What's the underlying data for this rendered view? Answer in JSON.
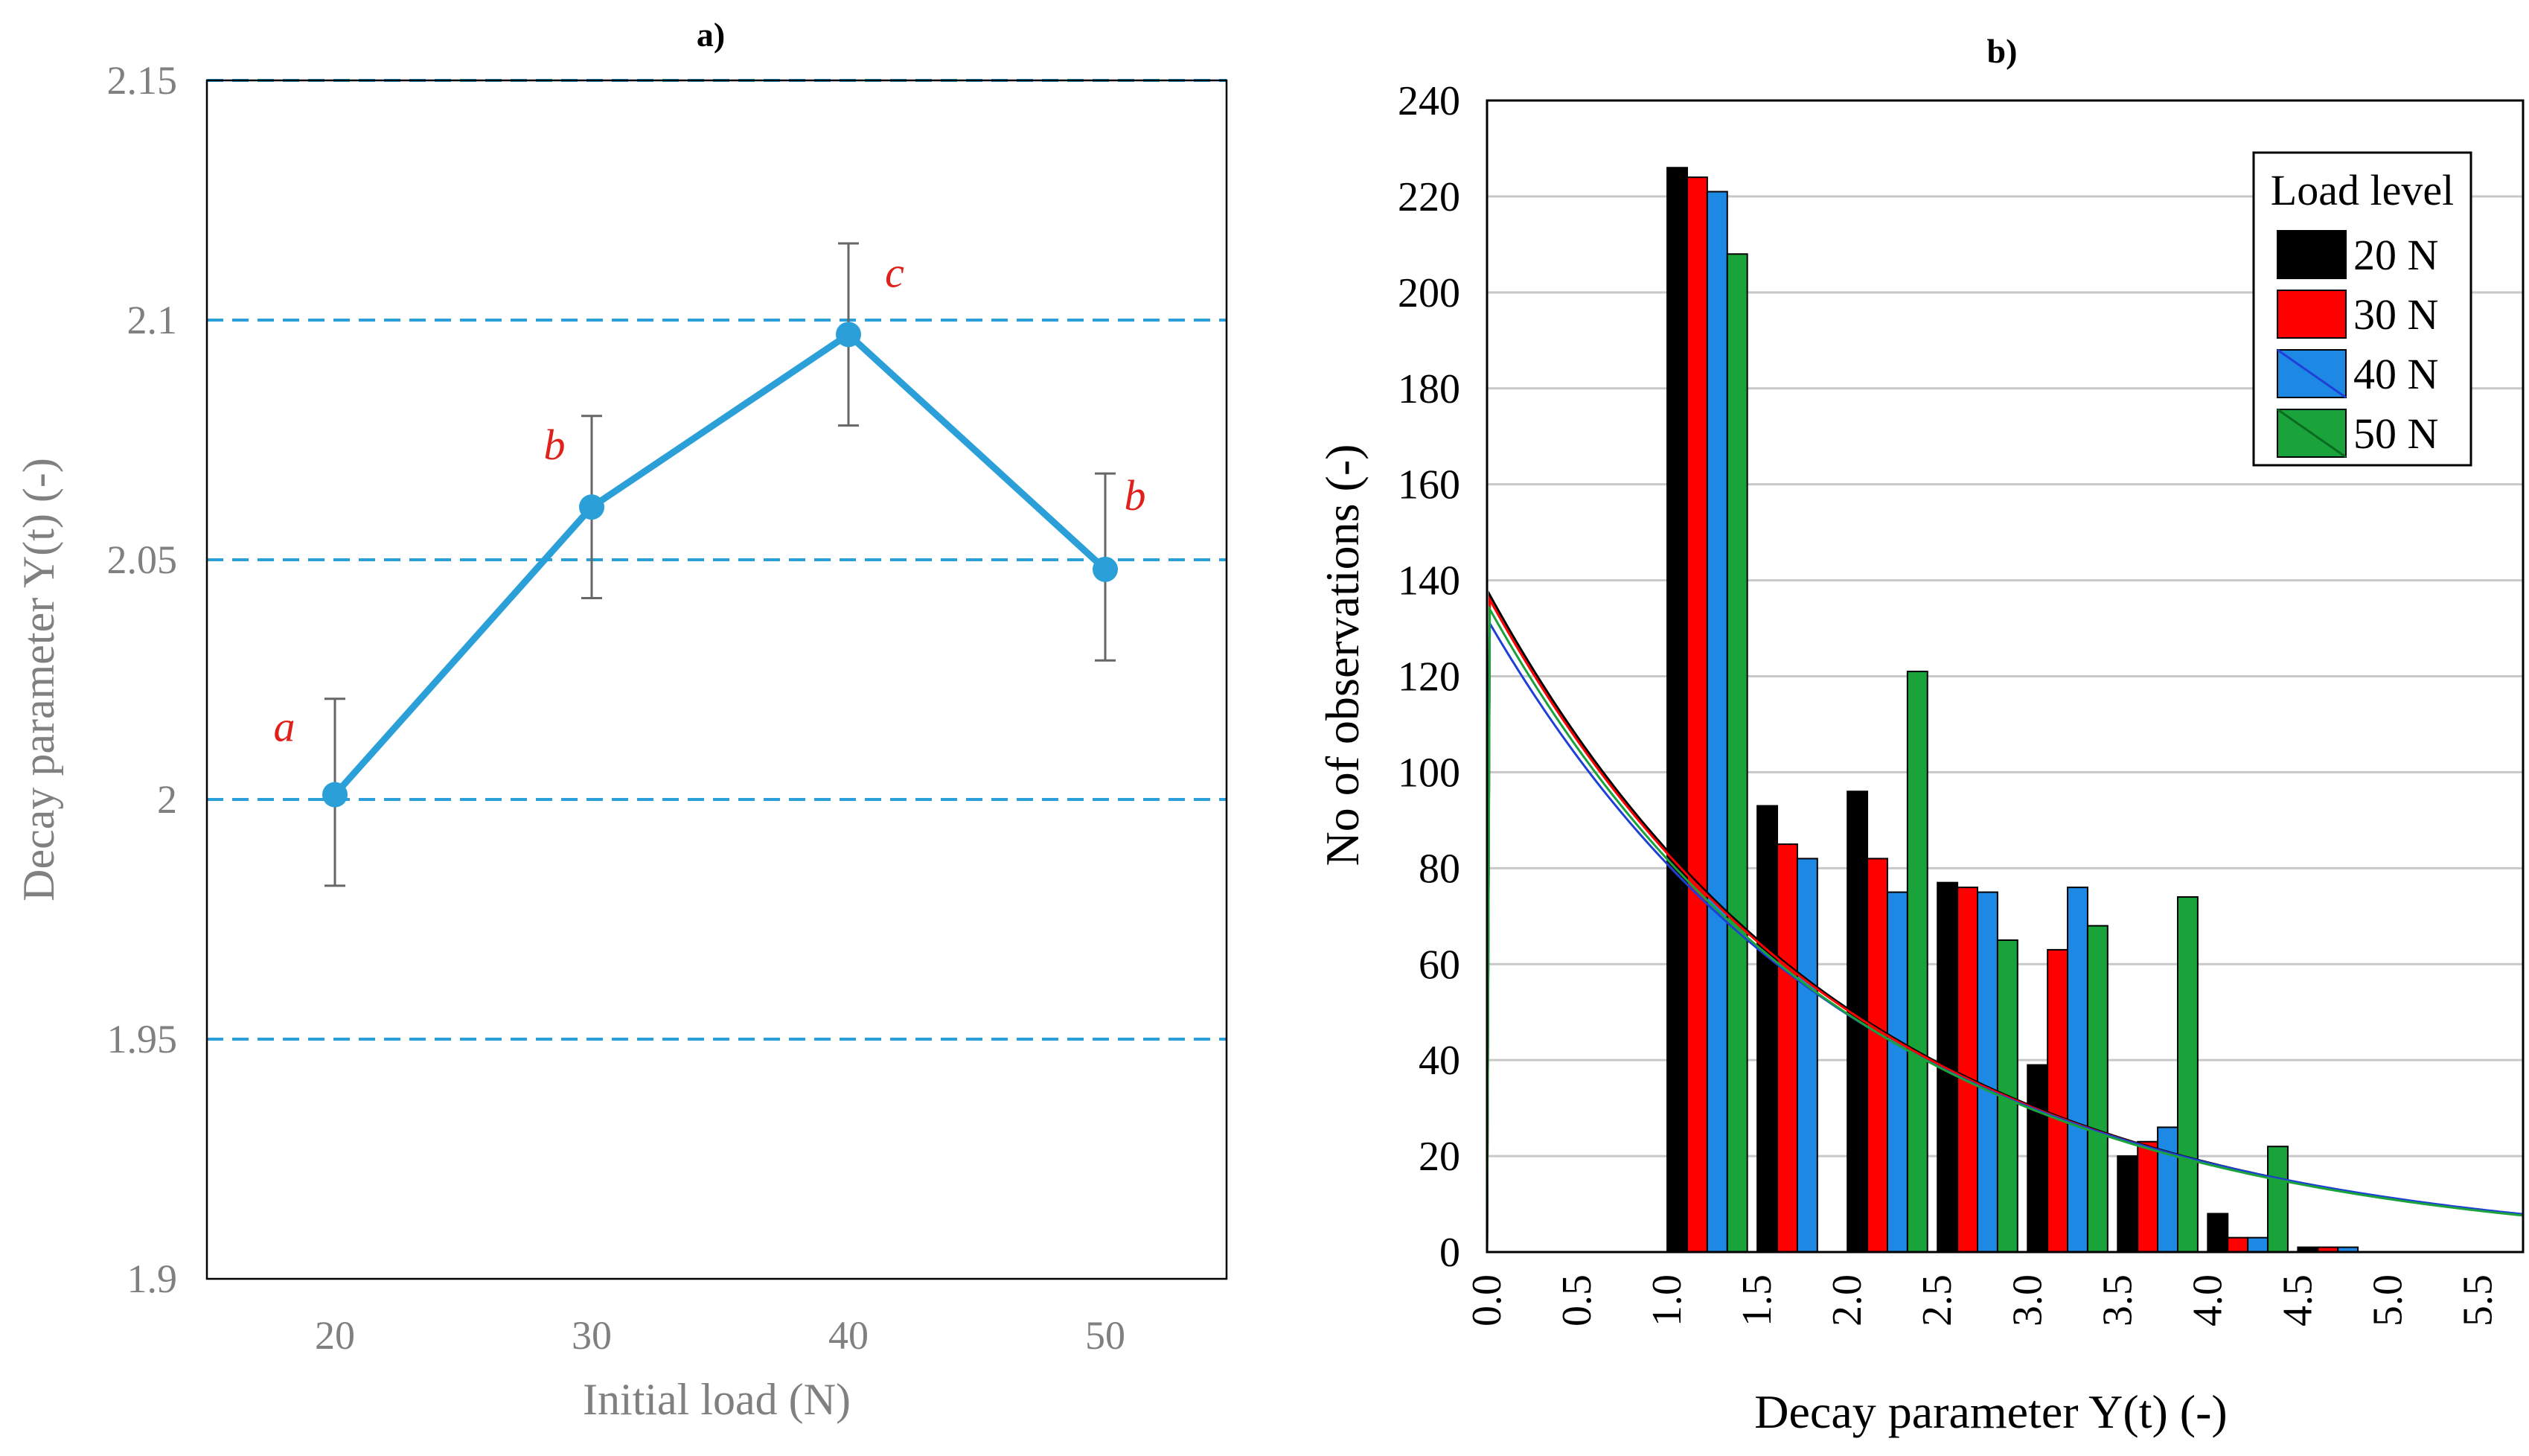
{
  "chart_data": [
    {
      "type": "line",
      "panel_label": "a)",
      "title": "a)",
      "xlabel": "Initial load (N)",
      "ylabel": "Decay parameter Y(t) (-)",
      "categories": [
        "20",
        "30",
        "40",
        "50"
      ],
      "values": [
        2.001,
        2.061,
        2.097,
        2.048
      ],
      "error_low": [
        1.982,
        2.042,
        2.078,
        2.029
      ],
      "error_high": [
        2.021,
        2.08,
        2.116,
        2.068
      ],
      "group_letters": [
        "a",
        "b",
        "c",
        "b"
      ],
      "ylim": [
        1.9,
        2.15
      ],
      "yticks": [
        "1.9",
        "1.95",
        "2",
        "2.05",
        "2.1",
        "2.15"
      ],
      "ytick_values": [
        1.9,
        1.95,
        2.0,
        2.05,
        2.1,
        2.15
      ],
      "grid": true,
      "colors": {
        "line": "#2b9fd8",
        "grid": "#2b9fd8",
        "error": "#666666",
        "letters": "#e0201b",
        "axis_text": "#808080"
      }
    },
    {
      "type": "bar",
      "panel_label": "b)",
      "title": "b)",
      "xlabel": "Decay parameter Y(t) (-)",
      "ylabel": "No of observations (-)",
      "bin_centers": [
        1.25,
        1.75,
        2.25,
        2.75,
        3.25,
        3.75,
        4.25,
        4.75
      ],
      "bin_width": 0.5,
      "series": [
        {
          "name": "20 N",
          "color": "#000000",
          "values": [
            226,
            93,
            96,
            77,
            39,
            20,
            8,
            1
          ]
        },
        {
          "name": "30 N",
          "color": "#ff0000",
          "values": [
            224,
            85,
            82,
            76,
            63,
            23,
            3,
            1
          ]
        },
        {
          "name": "40 N",
          "color": "#1e88e5",
          "values": [
            221,
            82,
            75,
            75,
            76,
            26,
            3,
            1
          ]
        },
        {
          "name": "50 N",
          "color": "#1aa33a",
          "values": [
            208,
            0,
            121,
            65,
            68,
            74,
            22,
            0
          ]
        }
      ],
      "fit_curves": [
        {
          "name": "20 N",
          "color": "#000000",
          "y0": 138,
          "decay": 0.5
        },
        {
          "name": "30 N",
          "color": "#ff0000",
          "y0": 137,
          "decay": 0.5
        },
        {
          "name": "40 N",
          "color": "#1e40d8",
          "values_note": "",
          "y0": 132,
          "decay": 0.49
        },
        {
          "name": "50 N",
          "color": "#1aa33a",
          "y0": 135,
          "decay": 0.5
        }
      ],
      "xlim": [
        0,
        5.75
      ],
      "xticks": [
        "0.0",
        "0.5",
        "1.0",
        "1.5",
        "2.0",
        "2.5",
        "3.0",
        "3.5",
        "4.0",
        "4.5",
        "5.0",
        "5.5"
      ],
      "xtick_values": [
        0,
        0.5,
        1.0,
        1.5,
        2.0,
        2.5,
        3.0,
        3.5,
        4.0,
        4.5,
        5.0,
        5.5
      ],
      "ylim": [
        0,
        240
      ],
      "yticks": [
        "0",
        "20",
        "40",
        "60",
        "80",
        "100",
        "120",
        "140",
        "160",
        "180",
        "200",
        "220",
        "240"
      ],
      "ytick_values": [
        0,
        20,
        40,
        60,
        80,
        100,
        120,
        140,
        160,
        180,
        200,
        220,
        240
      ],
      "grid": true,
      "legend": {
        "title": "Load level",
        "position": "top-right"
      }
    }
  ]
}
